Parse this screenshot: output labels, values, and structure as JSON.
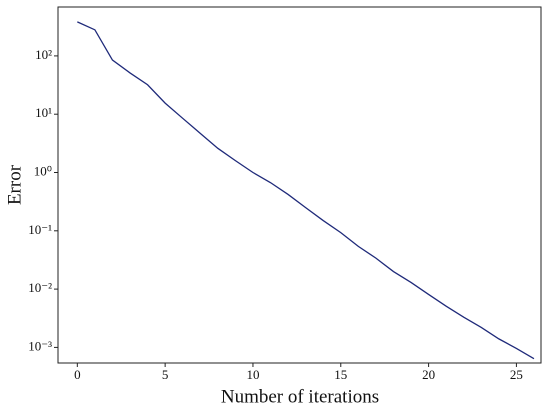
{
  "chart_data": {
    "type": "line",
    "x_label": "Number of iterations",
    "y_label": "Error",
    "x": [
      0,
      1,
      2,
      3,
      4,
      5,
      6,
      7,
      8,
      9,
      10,
      11,
      12,
      13,
      14,
      15,
      16,
      17,
      18,
      19,
      20,
      21,
      22,
      23,
      24,
      25,
      26
    ],
    "series": [
      {
        "name": "Error",
        "color": "#1f2a7a",
        "values": [
          383,
          280,
          85,
          51,
          32,
          15.5,
          8.5,
          4.7,
          2.6,
          1.6,
          1.0,
          0.67,
          0.42,
          0.25,
          0.15,
          0.093,
          0.054,
          0.034,
          0.02,
          0.013,
          0.0081,
          0.0051,
          0.0033,
          0.0022,
          0.0014,
          0.00096,
          0.00064
        ]
      }
    ],
    "xlim": [
      -1.1,
      26.4
    ],
    "xticks": [
      0,
      5,
      10,
      15,
      20,
      25
    ],
    "ylim": [
      0.00054,
      690
    ],
    "yscale": "log",
    "yticks": [
      {
        "value": 0.001,
        "label": "10⁻³"
      },
      {
        "value": 0.01,
        "label": "10⁻²"
      },
      {
        "value": 0.1,
        "label": "10⁻¹"
      },
      {
        "value": 1,
        "label": "10⁰"
      },
      {
        "value": 10,
        "label": "10¹"
      },
      {
        "value": 100,
        "label": "10²"
      }
    ],
    "grid": false
  }
}
